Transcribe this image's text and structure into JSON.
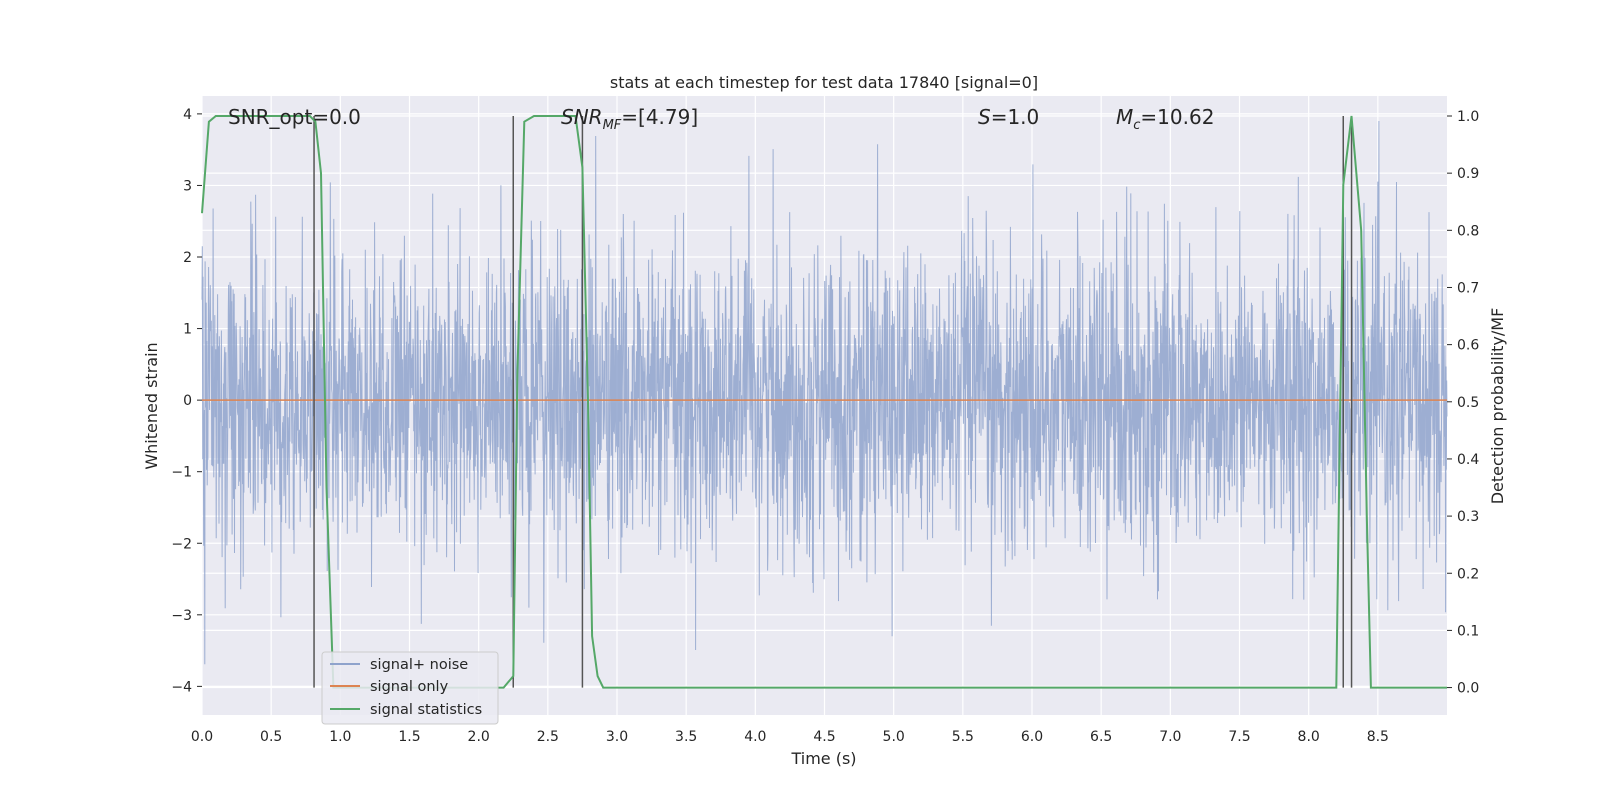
{
  "chart_data": {
    "type": "line",
    "title": "stats at each timestep for test data 17840 [signal=0]",
    "xlabel": "Time (s)",
    "ylabel": "Whitened strain",
    "y2label": "Detection probability/MF",
    "xlim": [
      0.0,
      9.0
    ],
    "ylim": [
      -4.4,
      4.25
    ],
    "y2lim": [
      -0.048,
      1.035
    ],
    "xticks": [
      "0.0",
      "0.5",
      "1.0",
      "1.5",
      "2.0",
      "2.5",
      "3.0",
      "3.5",
      "4.0",
      "4.5",
      "5.0",
      "5.5",
      "6.0",
      "6.5",
      "7.0",
      "7.5",
      "8.0",
      "8.5"
    ],
    "yticks": [
      "4",
      "3",
      "2",
      "1",
      "0",
      "−1",
      "−2",
      "−3",
      "−4"
    ],
    "y2ticks": [
      "1.0",
      "0.9",
      "0.8",
      "0.7",
      "0.6",
      "0.5",
      "0.4",
      "0.3",
      "0.2",
      "0.1",
      "0.0"
    ],
    "grid": true,
    "legend_position": "lower-left",
    "annotations": {
      "snr_opt": "SNR_opt=0.0",
      "snr_mf": "SNR_MF=[4.79]",
      "s": "S=1.0",
      "mc": "M_c=10.62"
    },
    "series": [
      {
        "name": "signal+ noise",
        "axis": "left",
        "color": "#8fa3cc",
        "noise_sigma": 1.0,
        "envelope_approx": [
          -4.0,
          3.9
        ]
      },
      {
        "name": "signal only",
        "axis": "left",
        "color": "#dd8452",
        "x": [
          0.0,
          9.0
        ],
        "values": [
          0.0,
          0.0
        ]
      },
      {
        "name": "signal statistics",
        "axis": "right",
        "color": "#55a868",
        "x": [
          0.0,
          0.05,
          0.1,
          0.15,
          0.5,
          0.78,
          0.82,
          0.86,
          0.9,
          0.95,
          1.0,
          1.1,
          1.3,
          1.8,
          2.15,
          2.18,
          2.25,
          2.28,
          2.33,
          2.4,
          2.7,
          2.75,
          2.79,
          2.82,
          2.86,
          2.9,
          3.0,
          4.0,
          5.0,
          6.0,
          7.0,
          8.0,
          8.2,
          8.25,
          8.31,
          8.38,
          8.42,
          8.45,
          9.0
        ],
        "values": [
          0.83,
          0.99,
          1.0,
          1.0,
          1.0,
          1.0,
          0.99,
          0.9,
          0.35,
          0.0,
          0.0,
          0.0,
          0.0,
          0.0,
          0.0,
          0.0,
          0.02,
          0.55,
          0.99,
          1.0,
          1.0,
          0.91,
          0.5,
          0.09,
          0.02,
          0.0,
          0.0,
          0.0,
          0.0,
          0.0,
          0.0,
          0.0,
          0.0,
          0.88,
          1.0,
          0.8,
          0.3,
          0.0,
          0.0
        ]
      }
    ],
    "vlines": [
      {
        "x": 0.81,
        "y_top": 1.0,
        "y_bottom": 0.0
      },
      {
        "x": 2.25,
        "y_top": 1.0,
        "y_bottom": 0.0
      },
      {
        "x": 2.75,
        "y_top": 1.0,
        "y_bottom": 0.0
      },
      {
        "x": 8.25,
        "y_top": 1.0,
        "y_bottom": 0.0
      },
      {
        "x": 8.31,
        "y_top": 1.0,
        "y_bottom": 0.0
      }
    ]
  }
}
